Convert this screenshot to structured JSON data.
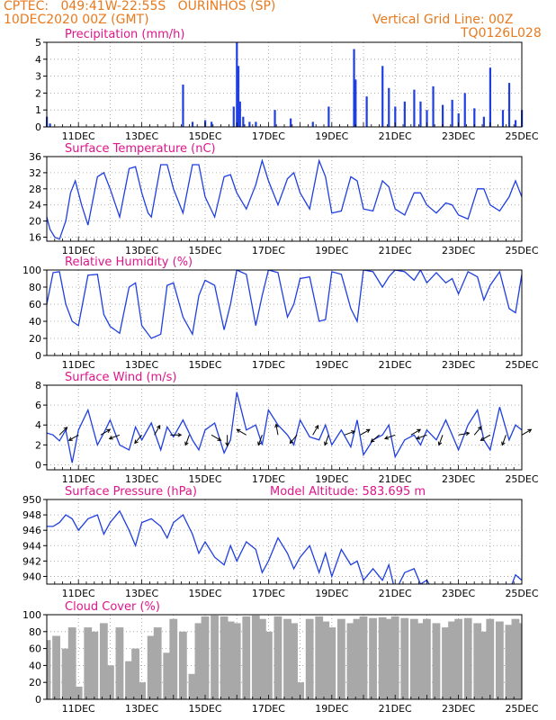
{
  "header": {
    "line1": "CPTEC:   049:41W-22:55S   OURINHOS (SP)",
    "line2": "10DEC2020 00Z (GMT)",
    "grid_note": "Vertical Grid Line: 00Z",
    "code": "TQ0126L028"
  },
  "x_axis": {
    "start_day": 10,
    "end_day": 25,
    "tick_labels": [
      "11DEC",
      "13DEC",
      "15DEC",
      "17DEC",
      "19DEC",
      "21DEC",
      "23DEC",
      "25DEC"
    ]
  },
  "colors": {
    "header": "#e87a1e",
    "title": "#e0158a",
    "series": "#1f3fe0",
    "cloud": "#a8a8a8",
    "wind_arrow": "#000000"
  },
  "chart_data": [
    {
      "type": "bar",
      "title": "Precipitation (mm/h)",
      "ylim": [
        0,
        5
      ],
      "yticks": [
        0,
        1,
        2,
        3,
        4,
        5
      ],
      "x_unit": "day of December 2020",
      "x": [
        10.0,
        10.1,
        14.3,
        14.6,
        15.0,
        15.2,
        15.9,
        16.0,
        16.05,
        16.1,
        16.2,
        16.4,
        16.6,
        17.2,
        17.7,
        18.4,
        18.9,
        19.7,
        19.75,
        20.1,
        20.6,
        20.8,
        21.0,
        21.3,
        21.6,
        21.8,
        22.0,
        22.2,
        22.5,
        22.8,
        23.0,
        23.2,
        23.5,
        23.8,
        24.0,
        24.4,
        24.6,
        24.8,
        25.0
      ],
      "values": [
        0.6,
        0.2,
        2.5,
        0.3,
        0.4,
        0.3,
        1.2,
        5.0,
        3.6,
        1.5,
        0.6,
        0.3,
        0.3,
        1.0,
        0.5,
        0.3,
        1.2,
        4.6,
        2.8,
        1.8,
        3.6,
        2.3,
        1.2,
        1.5,
        2.2,
        1.5,
        1.0,
        2.4,
        1.3,
        1.6,
        0.8,
        2.0,
        1.1,
        0.6,
        3.5,
        1.0,
        2.6,
        0.4,
        1.0
      ]
    },
    {
      "type": "line",
      "title": "Surface Temperature (nC)",
      "ylim": [
        15,
        36
      ],
      "yticks": [
        16,
        20,
        24,
        28,
        32,
        36
      ],
      "x_unit": "day of December 2020",
      "x": [
        10.0,
        10.1,
        10.25,
        10.4,
        10.6,
        10.75,
        10.9,
        11.1,
        11.3,
        11.6,
        11.8,
        12.0,
        12.3,
        12.6,
        12.8,
        13.0,
        13.2,
        13.3,
        13.6,
        13.8,
        14.0,
        14.3,
        14.6,
        14.8,
        15.0,
        15.3,
        15.6,
        15.8,
        16.0,
        16.3,
        16.6,
        16.8,
        17.0,
        17.3,
        17.6,
        17.8,
        18.0,
        18.3,
        18.6,
        18.8,
        19.0,
        19.3,
        19.6,
        19.8,
        20.0,
        20.3,
        20.6,
        20.8,
        21.0,
        21.3,
        21.6,
        21.8,
        22.0,
        22.3,
        22.6,
        22.8,
        23.0,
        23.3,
        23.6,
        23.8,
        24.0,
        24.3,
        24.6,
        24.8,
        25.0
      ],
      "values": [
        21,
        18,
        16,
        15.5,
        20,
        27,
        30,
        24,
        19,
        31,
        32,
        28,
        21,
        33,
        33.5,
        27,
        22,
        21,
        34,
        34,
        28,
        22,
        34,
        34,
        26,
        21,
        31,
        31.5,
        27,
        23,
        29,
        35,
        30,
        24,
        30.5,
        32,
        27,
        23,
        35,
        31,
        22,
        22.5,
        31,
        30,
        23,
        22.5,
        30,
        28.5,
        23,
        21.5,
        27,
        27,
        24,
        22,
        24.5,
        24,
        21.5,
        20.5,
        28,
        28,
        24,
        22.5,
        26,
        30,
        26
      ]
    },
    {
      "type": "line",
      "title": "Relative Humidity (%)",
      "ylim": [
        0,
        100
      ],
      "yticks": [
        0,
        20,
        40,
        60,
        80,
        100
      ],
      "x_unit": "day of December 2020",
      "x": [
        10.0,
        10.2,
        10.4,
        10.6,
        10.8,
        11.0,
        11.3,
        11.6,
        11.8,
        12.0,
        12.3,
        12.6,
        12.8,
        13.0,
        13.3,
        13.6,
        13.8,
        14.0,
        14.3,
        14.6,
        14.8,
        15.0,
        15.3,
        15.6,
        15.8,
        16.0,
        16.3,
        16.6,
        16.8,
        17.0,
        17.3,
        17.6,
        17.8,
        18.0,
        18.3,
        18.6,
        18.8,
        19.0,
        19.3,
        19.6,
        19.8,
        20.0,
        20.3,
        20.6,
        20.8,
        21.0,
        21.3,
        21.6,
        21.8,
        22.0,
        22.3,
        22.6,
        22.8,
        23.0,
        23.3,
        23.6,
        23.8,
        24.0,
        24.3,
        24.6,
        24.8,
        25.0
      ],
      "values": [
        60,
        97,
        98,
        60,
        40,
        35,
        94,
        95,
        48,
        34,
        26,
        80,
        85,
        35,
        20,
        25,
        82,
        85,
        45,
        25,
        70,
        88,
        82,
        30,
        60,
        100,
        95,
        35,
        70,
        100,
        97,
        45,
        60,
        90,
        92,
        40,
        42,
        98,
        95,
        55,
        40,
        100,
        98,
        80,
        92,
        100,
        98,
        88,
        100,
        85,
        97,
        85,
        90,
        72,
        98,
        92,
        65,
        82,
        98,
        55,
        50,
        95
      ]
    },
    {
      "type": "line",
      "title": "Surface Wind (m/s)",
      "ylim": [
        -0.5,
        8
      ],
      "yticks": [
        0,
        2,
        4,
        6,
        8
      ],
      "x_unit": "day of December 2020",
      "x": [
        10.0,
        10.2,
        10.4,
        10.6,
        10.8,
        11.0,
        11.3,
        11.6,
        11.8,
        12.0,
        12.3,
        12.6,
        12.8,
        13.0,
        13.3,
        13.6,
        13.8,
        14.0,
        14.3,
        14.6,
        14.8,
        15.0,
        15.3,
        15.6,
        15.8,
        16.0,
        16.3,
        16.6,
        16.8,
        17.0,
        17.3,
        17.6,
        17.8,
        18.0,
        18.3,
        18.6,
        18.8,
        19.0,
        19.3,
        19.6,
        19.8,
        20.0,
        20.3,
        20.6,
        20.8,
        21.0,
        21.3,
        21.6,
        21.8,
        22.0,
        22.3,
        22.6,
        22.8,
        23.0,
        23.3,
        23.6,
        23.8,
        24.0,
        24.3,
        24.6,
        24.8,
        25.0
      ],
      "values": [
        3.2,
        3.0,
        2.4,
        3.5,
        0.2,
        3.5,
        5.5,
        2.0,
        3.2,
        4.5,
        2.0,
        1.5,
        3.8,
        2.5,
        4.2,
        1.5,
        3.8,
        2.8,
        4.5,
        2.5,
        1.5,
        3.5,
        4.2,
        1.2,
        2.5,
        7.3,
        3.5,
        4.0,
        2.0,
        5.5,
        4.0,
        3.0,
        2.0,
        4.5,
        2.8,
        2.5,
        4.0,
        2.0,
        3.5,
        1.8,
        4.5,
        1.0,
        2.5,
        3.0,
        4.0,
        0.8,
        2.5,
        3.0,
        2.0,
        3.5,
        2.5,
        4.5,
        3.0,
        1.5,
        4.0,
        5.5,
        2.5,
        1.5,
        5.8,
        2.5,
        4.0,
        3.5
      ],
      "arrows_x": [
        10.4,
        11.0,
        11.7,
        12.3,
        13.0,
        13.4,
        13.9,
        14.5,
        15.2,
        15.7,
        16.3,
        16.8,
        17.3,
        17.9,
        18.4,
        18.9,
        19.4,
        19.9,
        20.5,
        21.0,
        21.5,
        22.0,
        22.5,
        23.0,
        23.5,
        24.0,
        24.5,
        25.0
      ],
      "arrows_dir_deg": [
        45,
        240,
        60,
        250,
        220,
        30,
        90,
        200,
        120,
        180,
        300,
        200,
        350,
        220,
        30,
        200,
        70,
        60,
        230,
        250,
        60,
        250,
        200,
        80,
        40,
        240,
        200,
        60
      ]
    },
    {
      "type": "line",
      "title": "Surface Pressure (hPa)",
      "annotation": "Model Altitude: 583.695 m",
      "ylim": [
        939,
        950
      ],
      "yticks": [
        940,
        942,
        944,
        946,
        948,
        950
      ],
      "x_unit": "day of December 2020",
      "x": [
        10.0,
        10.2,
        10.4,
        10.6,
        10.8,
        11.0,
        11.3,
        11.6,
        11.8,
        12.0,
        12.3,
        12.6,
        12.8,
        13.0,
        13.3,
        13.6,
        13.8,
        14.0,
        14.3,
        14.6,
        14.8,
        15.0,
        15.3,
        15.6,
        15.8,
        16.0,
        16.3,
        16.6,
        16.8,
        17.0,
        17.3,
        17.6,
        17.8,
        18.0,
        18.3,
        18.6,
        18.8,
        19.0,
        19.3,
        19.6,
        19.8,
        20.0,
        20.3,
        20.6,
        20.8,
        21.0,
        21.3,
        21.6,
        21.8,
        22.0,
        22.3,
        22.6,
        22.8,
        23.0,
        23.3,
        23.6,
        23.8,
        24.0,
        24.3,
        24.6,
        24.8,
        25.0
      ],
      "values": [
        946.5,
        946.5,
        947.0,
        948.0,
        947.5,
        946.0,
        947.5,
        948.0,
        945.5,
        947.0,
        948.5,
        946.0,
        944.0,
        947.0,
        947.5,
        946.5,
        945.0,
        947.0,
        948.0,
        945.5,
        943.0,
        944.5,
        942.5,
        941.5,
        944.0,
        942.0,
        944.5,
        943.5,
        940.5,
        942.0,
        945.0,
        943.0,
        941.0,
        942.5,
        944.0,
        940.5,
        943.0,
        940.0,
        943.5,
        941.5,
        942.0,
        939.5,
        941.0,
        939.5,
        941.5,
        938.0,
        940.5,
        941.0,
        939.0,
        939.5,
        937.5,
        938.5,
        939.0,
        937.0,
        938.5,
        938.0,
        937.5,
        938.0,
        937.0,
        938.0,
        940.2,
        939.5
      ]
    },
    {
      "type": "area",
      "title": "Cloud Cover (%)",
      "ylim": [
        0,
        100
      ],
      "yticks": [
        0,
        20,
        40,
        60,
        80,
        100
      ],
      "x_unit": "day of December 2020",
      "x": [
        10.0,
        10.3,
        10.6,
        10.8,
        11.0,
        11.3,
        11.5,
        11.8,
        12.0,
        12.3,
        12.6,
        12.8,
        13.0,
        13.3,
        13.5,
        13.8,
        14.0,
        14.3,
        14.6,
        14.8,
        15.0,
        15.3,
        15.6,
        15.8,
        16.0,
        16.3,
        16.6,
        16.8,
        17.0,
        17.3,
        17.6,
        17.8,
        18.0,
        18.3,
        18.6,
        18.8,
        19.0,
        19.3,
        19.6,
        19.8,
        20.0,
        20.3,
        20.6,
        20.8,
        21.0,
        21.3,
        21.6,
        21.8,
        22.0,
        22.3,
        22.6,
        22.8,
        23.0,
        23.3,
        23.6,
        23.8,
        24.0,
        24.3,
        24.6,
        24.8,
        25.0
      ],
      "values": [
        70,
        75,
        60,
        85,
        15,
        85,
        80,
        90,
        40,
        85,
        45,
        60,
        20,
        75,
        85,
        55,
        95,
        80,
        30,
        90,
        98,
        99,
        98,
        92,
        90,
        98,
        99,
        95,
        80,
        98,
        95,
        90,
        20,
        95,
        98,
        92,
        85,
        95,
        90,
        95,
        98,
        96,
        97,
        95,
        98,
        96,
        95,
        90,
        95,
        90,
        85,
        92,
        95,
        96,
        90,
        80,
        95,
        92,
        88,
        95,
        90
      ]
    }
  ]
}
